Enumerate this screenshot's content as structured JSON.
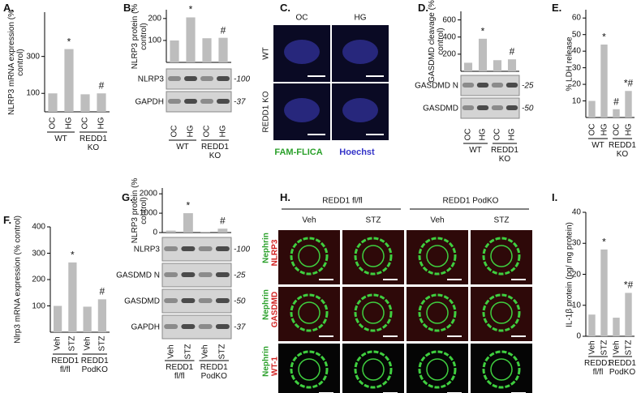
{
  "chart_data": [
    {
      "type": "bar",
      "panel_label": "A.",
      "y_label": "NLRP3 mRNA expression (% control)",
      "categories": [
        "OC",
        "HG",
        "OC",
        "HG"
      ],
      "groups": [
        "WT",
        "REDD1 KO"
      ],
      "values": [
        100,
        340,
        95,
        100
      ],
      "annotations": [
        null,
        "*",
        null,
        "#"
      ],
      "ylim": [
        0,
        540
      ],
      "yticks": [
        100,
        300
      ],
      "color": "#bdbdbd"
    },
    {
      "type": "bar",
      "panel_label": "B.",
      "y_label": "NLRP3 protein (% control)",
      "categories": [
        "OC",
        "HG",
        "OC",
        "HG"
      ],
      "groups": [
        "WT",
        "REDD1 KO"
      ],
      "values": [
        100,
        205,
        110,
        112
      ],
      "annotations": [
        null,
        "*",
        null,
        "#"
      ],
      "ylim": [
        0,
        240
      ],
      "yticks": [
        100,
        200
      ],
      "color": "#bdbdbd",
      "blot": [
        {
          "name": "NLRP3",
          "mw": "-100"
        },
        {
          "name": "GAPDH",
          "mw": "-37"
        }
      ]
    },
    {
      "type": "bar",
      "panel_label": "D.",
      "y_label": "GASDMD cleavage (% control)",
      "categories": [
        "OC",
        "HG",
        "OC",
        "HG"
      ],
      "groups": [
        "WT",
        "REDD1 KO"
      ],
      "values": [
        100,
        380,
        130,
        140
      ],
      "annotations": [
        null,
        "*",
        null,
        "#"
      ],
      "ylim": [
        0,
        700
      ],
      "yticks": [
        200,
        400,
        600
      ],
      "color": "#bdbdbd",
      "blot": [
        {
          "name": "GASDMD N",
          "mw": "-25"
        },
        {
          "name": "GASDMD",
          "mw": "-50"
        }
      ]
    },
    {
      "type": "bar",
      "panel_label": "E.",
      "y_label": "% LDH release",
      "categories": [
        "OC",
        "HG",
        "OC",
        "HG"
      ],
      "groups": [
        "WT",
        "REDD1 KO"
      ],
      "values": [
        10,
        44,
        5,
        16
      ],
      "annotations": [
        null,
        "*",
        "#",
        "*#"
      ],
      "ylim": [
        0,
        65
      ],
      "yticks": [
        10,
        20,
        30,
        40,
        50,
        60
      ],
      "color": "#bdbdbd"
    },
    {
      "type": "bar",
      "panel_label": "F.",
      "y_label": "Nlrp3 mRNA expression (% control)",
      "categories": [
        "Veh",
        "STZ",
        "Veh",
        "STZ"
      ],
      "groups": [
        "REDD1 fl/fl",
        "REDD1 PodKO"
      ],
      "values": [
        100,
        265,
        97,
        125
      ],
      "annotations": [
        null,
        "*",
        null,
        "#"
      ],
      "ylim": [
        0,
        400
      ],
      "yticks": [
        100,
        200,
        300,
        400
      ],
      "color": "#bdbdbd"
    },
    {
      "type": "bar",
      "panel_label": "G.",
      "y_label": "NLRP3 protein (% control)",
      "categories": [
        "Veh",
        "STZ",
        "Veh",
        "STZ"
      ],
      "groups": [
        "REDD1 fl/fl",
        "REDD1 PodKO"
      ],
      "values": [
        100,
        1000,
        40,
        200
      ],
      "annotations": [
        null,
        "*",
        null,
        "#"
      ],
      "ylim": [
        0,
        2300
      ],
      "yticks": [
        0,
        1000,
        2000
      ],
      "color": "#bdbdbd",
      "blot": [
        {
          "name": "NLRP3",
          "mw": "-100"
        },
        {
          "name": "GASDMD N",
          "mw": "-25"
        },
        {
          "name": "GASDMD",
          "mw": "-50"
        },
        {
          "name": "GAPDH",
          "mw": "-37"
        }
      ]
    },
    {
      "type": "bar",
      "panel_label": "I.",
      "y_label": "IL-1β protein (pg/ mg protein)",
      "categories": [
        "Veh",
        "STZ",
        "Veh",
        "STZ"
      ],
      "groups": [
        "REDD1 fl/fl",
        "REDD1 PodKO"
      ],
      "values": [
        7,
        28,
        6,
        14
      ],
      "annotations": [
        null,
        "*",
        null,
        "*#"
      ],
      "ylim": [
        0,
        40
      ],
      "yticks": [
        0,
        10,
        20,
        30,
        40
      ],
      "color": "#bdbdbd"
    }
  ],
  "panel_c": {
    "panel_label": "C.",
    "columns": [
      "OC",
      "HG"
    ],
    "rows": [
      "WT",
      "REDD1 KO"
    ],
    "stains": [
      "FAM-FLICA",
      "Hoechst"
    ]
  },
  "panel_h": {
    "panel_label": "H.",
    "groups": [
      "REDD1 fl/fl",
      "REDD1 PodKO"
    ],
    "columns": [
      "Veh",
      "STZ",
      "Veh",
      "STZ"
    ],
    "rows": [
      [
        "Nephrin",
        "NLRP3"
      ],
      [
        "Nephrin",
        "GASDMD"
      ],
      [
        "Nephrin",
        "WT-1"
      ]
    ]
  }
}
